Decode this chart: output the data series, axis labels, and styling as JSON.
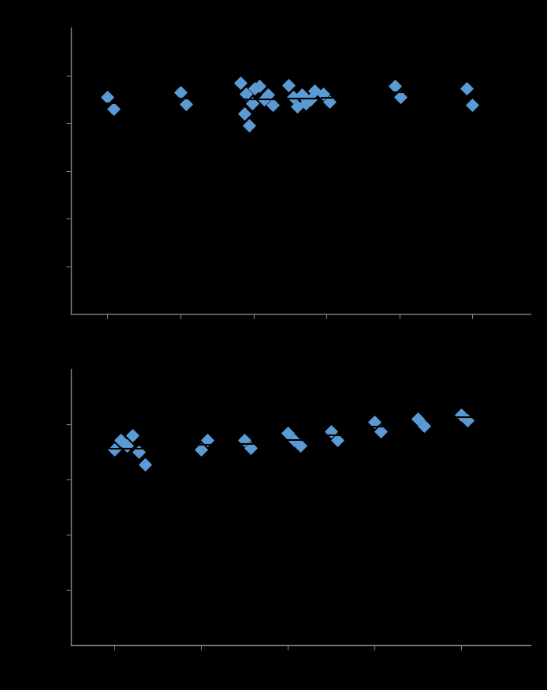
{
  "background": "#000000",
  "marker_color": "#5B9BD5",
  "marker_size": 60,
  "marker_style": "D",
  "spine_color": "#808080",
  "chart1": {
    "xlim": [
      0.5,
      6.8
    ],
    "ylim": [
      0,
      6
    ],
    "xticks": [
      1,
      2,
      3,
      4,
      5,
      6
    ],
    "yticks": [
      1,
      2,
      3,
      4,
      5
    ],
    "points_x": [
      1.0,
      1.08,
      2.0,
      2.08,
      2.82,
      2.9,
      2.98,
      2.88,
      2.94,
      3.02,
      3.08,
      3.14,
      3.2,
      3.26,
      3.48,
      3.54,
      3.6,
      3.66,
      3.72,
      3.78,
      3.84,
      3.96,
      4.04,
      4.94,
      5.02,
      5.92,
      6.0
    ],
    "points_y": [
      4.55,
      4.3,
      4.65,
      4.4,
      4.85,
      4.62,
      4.42,
      4.2,
      3.95,
      4.72,
      4.78,
      4.5,
      4.6,
      4.38,
      4.8,
      4.55,
      4.35,
      4.6,
      4.42,
      4.5,
      4.68,
      4.62,
      4.44,
      4.78,
      4.55,
      4.72,
      4.38
    ],
    "median_lines": [
      {
        "x_start": 0.92,
        "x_end": 1.18,
        "y": 4.42
      },
      {
        "x_start": 1.92,
        "x_end": 2.18,
        "y": 4.52
      },
      {
        "x_start": 2.8,
        "x_end": 3.28,
        "y": 4.5
      },
      {
        "x_start": 3.45,
        "x_end": 3.87,
        "y": 4.52
      },
      {
        "x_start": 3.93,
        "x_end": 4.07,
        "y": 4.53
      },
      {
        "x_start": 4.9,
        "x_end": 5.06,
        "y": 4.65
      },
      {
        "x_start": 5.88,
        "x_end": 6.04,
        "y": 4.55
      }
    ]
  },
  "chart2": {
    "xlim": [
      0.5,
      5.8
    ],
    "ylim": [
      0,
      5
    ],
    "xticks": [
      1,
      2,
      3,
      4,
      5
    ],
    "yticks": [
      1,
      2,
      3,
      4
    ],
    "points_x": [
      1.0,
      1.07,
      1.14,
      1.21,
      1.28,
      1.35,
      2.0,
      2.07,
      2.5,
      2.57,
      3.0,
      3.07,
      3.14,
      3.5,
      3.57,
      4.0,
      4.07,
      4.5,
      4.57,
      5.0,
      5.07
    ],
    "points_y": [
      3.55,
      3.72,
      3.62,
      3.8,
      3.5,
      3.28,
      3.55,
      3.72,
      3.72,
      3.58,
      3.85,
      3.72,
      3.62,
      3.88,
      3.72,
      4.05,
      3.88,
      4.1,
      3.98,
      4.18,
      4.08
    ],
    "median_lines": [
      {
        "x_start": 0.95,
        "x_end": 1.4,
        "y": 3.56
      },
      {
        "x_start": 1.95,
        "x_end": 2.12,
        "y": 3.63
      },
      {
        "x_start": 2.45,
        "x_end": 2.62,
        "y": 3.65
      },
      {
        "x_start": 2.95,
        "x_end": 3.18,
        "y": 3.72
      },
      {
        "x_start": 3.45,
        "x_end": 3.62,
        "y": 3.8
      },
      {
        "x_start": 3.95,
        "x_end": 4.12,
        "y": 3.96
      },
      {
        "x_start": 4.95,
        "x_end": 5.12,
        "y": 4.13
      }
    ]
  }
}
